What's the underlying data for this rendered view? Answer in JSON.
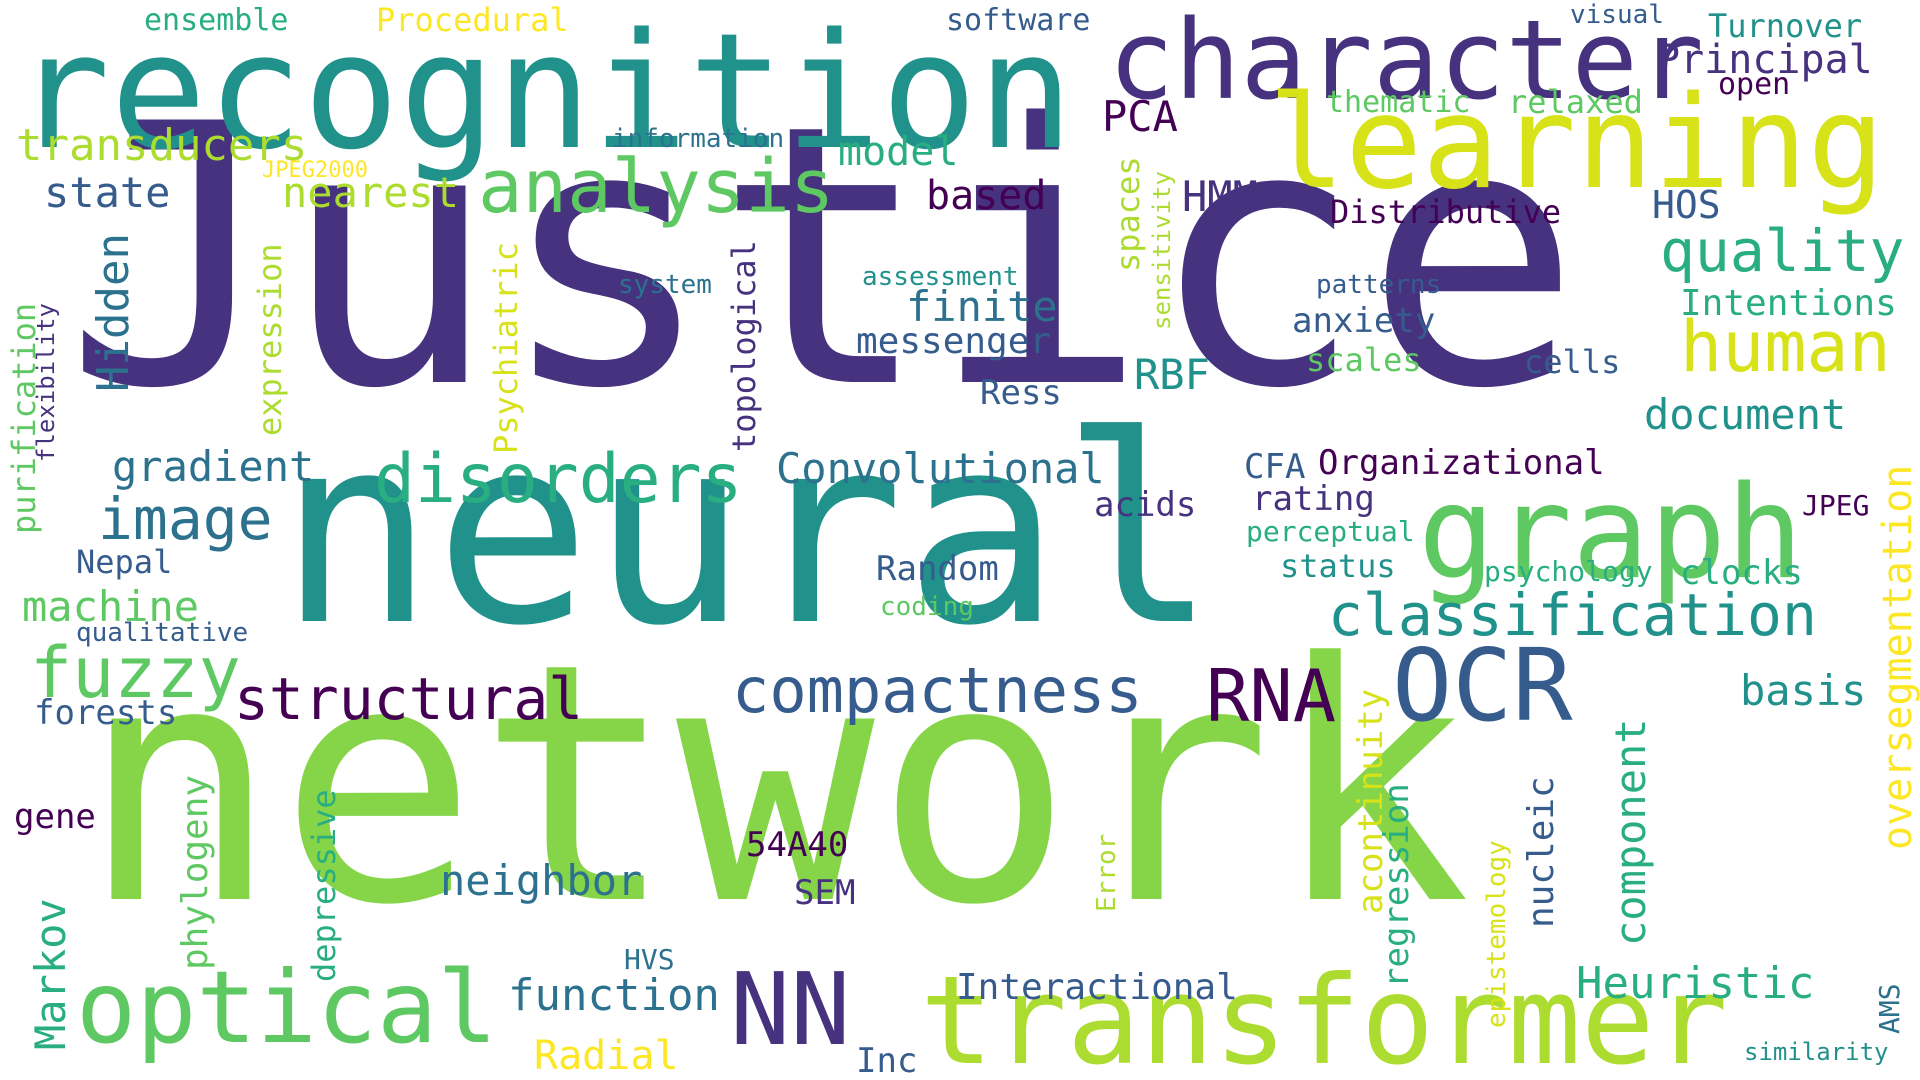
{
  "palette": {
    "purple": "#46327e",
    "darkpurple": "#440154",
    "navy": "#365c8d",
    "blue": "#2c728e",
    "teal": "#21918c",
    "green": "#28ae80",
    "lightgreen": "#5ec962",
    "lime": "#86d549",
    "yellowgreen": "#addc30",
    "yellow": "#d8e219",
    "brightyellow": "#fde725"
  },
  "words": [
    {
      "text": "Justice",
      "color": "#46327e"
    },
    {
      "text": "network",
      "color": "#86d549"
    },
    {
      "text": "neural",
      "color": "#21918c"
    },
    {
      "text": "recognition",
      "color": "#21918c"
    },
    {
      "text": "character",
      "color": "#46327e"
    },
    {
      "text": "learning",
      "color": "#d8e219"
    },
    {
      "text": "transformer",
      "color": "#addc30"
    },
    {
      "text": "graph",
      "color": "#5ec962"
    },
    {
      "text": "optical",
      "color": "#5ec962"
    },
    {
      "text": "OCR",
      "color": "#365c8d"
    },
    {
      "text": "NN",
      "color": "#46327e"
    },
    {
      "text": "analysis",
      "color": "#5ec962"
    },
    {
      "text": "disorders",
      "color": "#28ae80"
    },
    {
      "text": "classification",
      "color": "#21918c"
    },
    {
      "text": "compactness",
      "color": "#365c8d"
    },
    {
      "text": "fuzzy",
      "color": "#5ec962"
    },
    {
      "text": "structural",
      "color": "#440154"
    },
    {
      "text": "RNA",
      "color": "#440154"
    },
    {
      "text": "quality",
      "color": "#28ae80"
    },
    {
      "text": "human",
      "color": "#d8e219"
    },
    {
      "text": "image",
      "color": "#2c728e"
    },
    {
      "text": "Principal",
      "color": "#46327e"
    },
    {
      "text": "transducers",
      "color": "#addc30"
    },
    {
      "text": "nearest",
      "color": "#addc30"
    },
    {
      "text": "state",
      "color": "#365c8d"
    },
    {
      "text": "model",
      "color": "#28ae80"
    },
    {
      "text": "PCA",
      "color": "#440154"
    },
    {
      "text": "based",
      "color": "#440154"
    },
    {
      "text": "HMM",
      "color": "#46327e"
    },
    {
      "text": "finite",
      "color": "#2c728e"
    },
    {
      "text": "messenger",
      "color": "#365c8d"
    },
    {
      "text": "Hidden",
      "color": "#2c728e"
    },
    {
      "text": "expression",
      "color": "#addc30"
    },
    {
      "text": "Psychiatric",
      "color": "#d8e219"
    },
    {
      "text": "topological",
      "color": "#46327e"
    },
    {
      "text": "spaces",
      "color": "#addc30"
    },
    {
      "text": "sensitivity",
      "color": "#addc30"
    },
    {
      "text": "purification",
      "color": "#5ec962"
    },
    {
      "text": "flexibility",
      "color": "#46327e"
    },
    {
      "text": "gradient",
      "color": "#2c728e"
    },
    {
      "text": "Convolutional",
      "color": "#2c728e"
    },
    {
      "text": "RBF",
      "color": "#21918c"
    },
    {
      "text": "Ress",
      "color": "#365c8d"
    },
    {
      "text": "document",
      "color": "#21918c"
    },
    {
      "text": "Organizational",
      "color": "#440154"
    },
    {
      "text": "CFA",
      "color": "#365c8d"
    },
    {
      "text": "rating",
      "color": "#46327e"
    },
    {
      "text": "perceptual",
      "color": "#28ae80"
    },
    {
      "text": "acids",
      "color": "#46327e"
    },
    {
      "text": "status",
      "color": "#21918c"
    },
    {
      "text": "Random",
      "color": "#365c8d"
    },
    {
      "text": "coding",
      "color": "#5ec962"
    },
    {
      "text": "psychology",
      "color": "#28ae80"
    },
    {
      "text": "clocks",
      "color": "#28ae80"
    },
    {
      "text": "JPEG",
      "color": "#440154"
    },
    {
      "text": "Nepal",
      "color": "#365c8d"
    },
    {
      "text": "machine",
      "color": "#5ec962"
    },
    {
      "text": "qualitative",
      "color": "#365c8d"
    },
    {
      "text": "forests",
      "color": "#365c8d"
    },
    {
      "text": "gene",
      "color": "#440154"
    },
    {
      "text": "phylogeny",
      "color": "#5ec962"
    },
    {
      "text": "depressive",
      "color": "#28ae80"
    },
    {
      "text": "Markov",
      "color": "#28ae80"
    },
    {
      "text": "neighbor",
      "color": "#2c728e"
    },
    {
      "text": "54A40",
      "color": "#440154"
    },
    {
      "text": "SEM",
      "color": "#46327e"
    },
    {
      "text": "function",
      "color": "#2c728e"
    },
    {
      "text": "Radial",
      "color": "#fde725"
    },
    {
      "text": "HVS",
      "color": "#2c728e"
    },
    {
      "text": "Inc",
      "color": "#365c8d"
    },
    {
      "text": "Interactional",
      "color": "#365c8d"
    },
    {
      "text": "Error",
      "color": "#addc30"
    },
    {
      "text": "acontinuity",
      "color": "#d8e219"
    },
    {
      "text": "regression",
      "color": "#28ae80"
    },
    {
      "text": "epistemology",
      "color": "#d8e219"
    },
    {
      "text": "nucleic",
      "color": "#365c8d"
    },
    {
      "text": "component",
      "color": "#28ae80"
    },
    {
      "text": "Heuristic",
      "color": "#28ae80"
    },
    {
      "text": "basis",
      "color": "#21918c"
    },
    {
      "text": "oversegmentation",
      "color": "#fde725"
    },
    {
      "text": "AMS",
      "color": "#2c728e"
    },
    {
      "text": "similarity",
      "color": "#21918c"
    },
    {
      "text": "ensemble",
      "color": "#28ae80"
    },
    {
      "text": "Procedural",
      "color": "#fde725"
    },
    {
      "text": "software",
      "color": "#365c8d"
    },
    {
      "text": "visual",
      "color": "#365c8d"
    },
    {
      "text": "Turnover",
      "color": "#21918c"
    },
    {
      "text": "open",
      "color": "#440154"
    },
    {
      "text": "thematic",
      "color": "#5ec962"
    },
    {
      "text": "relaxed",
      "color": "#5ec962"
    },
    {
      "text": "information",
      "color": "#2c728e"
    },
    {
      "text": "JPEG2000",
      "color": "#fde725"
    },
    {
      "text": "Distributive",
      "color": "#440154"
    },
    {
      "text": "HOS",
      "color": "#365c8d"
    },
    {
      "text": "assessment",
      "color": "#21918c"
    },
    {
      "text": "system",
      "color": "#2c728e"
    },
    {
      "text": "patterns",
      "color": "#365c8d"
    },
    {
      "text": "anxiety",
      "color": "#365c8d"
    },
    {
      "text": "Intentions",
      "color": "#28ae80"
    },
    {
      "text": "scales",
      "color": "#5ec962"
    },
    {
      "text": "cells",
      "color": "#365c8d"
    }
  ]
}
